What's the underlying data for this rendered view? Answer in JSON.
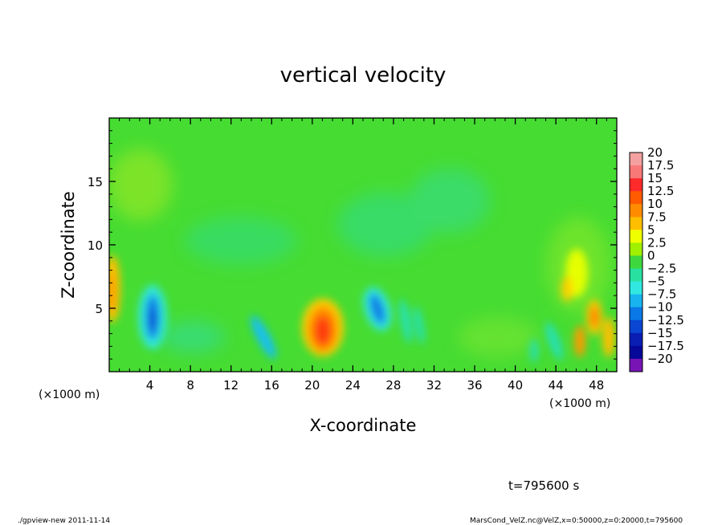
{
  "chart_data": {
    "type": "heatmap",
    "title": "vertical velocity",
    "xlabel": "X-coordinate",
    "ylabel": "Z-coordinate",
    "x_unit": "(×1000 m)",
    "y_unit": "(×1000 m)",
    "xlim": [
      0,
      50
    ],
    "ylim": [
      0,
      20
    ],
    "x_ticks": [
      4,
      8,
      12,
      16,
      20,
      24,
      28,
      32,
      36,
      40,
      44,
      48
    ],
    "y_ticks": [
      5,
      10,
      15
    ],
    "x_tick_labels": [
      "4",
      "8",
      "12",
      "16",
      "20",
      "24",
      "28",
      "32",
      "36",
      "40",
      "44",
      "48"
    ],
    "y_tick_labels": [
      "5",
      "10",
      "15"
    ],
    "colorbar": {
      "levels": [
        20,
        17.5,
        15,
        12.5,
        10,
        7.5,
        5,
        2.5,
        0,
        -2.5,
        -5,
        -7.5,
        -10,
        -12.5,
        -15,
        -17.5,
        -20
      ],
      "labels": [
        "20",
        "17.5",
        "15",
        "12.5",
        "10",
        "7.5",
        "5",
        "2.5",
        "0",
        "−2.5",
        "−5",
        "−7.5",
        "−10",
        "−12.5",
        "−15",
        "−17.5",
        "−20"
      ],
      "colors": [
        "#f4a0a0",
        "#f87878",
        "#ff2a2a",
        "#ff5a00",
        "#ff8c00",
        "#ffbe00",
        "#f0ff00",
        "#a0f000",
        "#3ed83e",
        "#28e0a0",
        "#30e8e0",
        "#18b4f0",
        "#0a78e6",
        "#0a46d2",
        "#0a1eb4",
        "#06089a",
        "#7814b4"
      ]
    },
    "background_color": "#46dc32",
    "features": [
      {
        "kind": "updraft",
        "x": 21,
        "z": 3.3,
        "peak": 12.5
      },
      {
        "kind": "downdraft",
        "x": 4.3,
        "z": 4.3,
        "peak": -12.5
      },
      {
        "kind": "downdraft",
        "x": 26.5,
        "z": 4.8,
        "peak": -10
      },
      {
        "kind": "downdraft",
        "x": 15.5,
        "z": 2.5,
        "peak": -7.5
      },
      {
        "kind": "updraft",
        "x": 0.3,
        "z": 6.5,
        "peak": 7.5
      },
      {
        "kind": "updraft",
        "x": 47.5,
        "z": 4.5,
        "peak": 10
      },
      {
        "kind": "updraft",
        "x": 46.2,
        "z": 2.8,
        "peak": 10
      }
    ]
  },
  "time_label": "t=795600 s",
  "footer_left": "./gpview-new   2011-11-14",
  "footer_right": "MarsCond_VelZ.nc@VelZ,x=0:50000,z=0:20000,t=795600"
}
